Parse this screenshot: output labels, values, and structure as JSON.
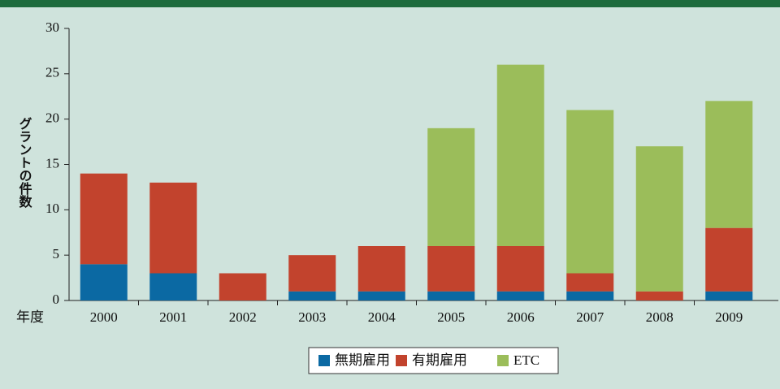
{
  "chart_data": {
    "type": "stacked_bar",
    "xlabel": "年度",
    "ylabel": "グラントの件数",
    "categories": [
      "2000",
      "2001",
      "2002",
      "2003",
      "2004",
      "2005",
      "2006",
      "2007",
      "2008",
      "2009"
    ],
    "series": [
      {
        "name": "無期雇用",
        "color": "#0b69a3",
        "values": [
          4,
          3,
          0,
          1,
          1,
          1,
          1,
          1,
          0,
          1
        ]
      },
      {
        "name": "有期雇用",
        "color": "#c2432d",
        "values": [
          10,
          10,
          3,
          4,
          5,
          5,
          5,
          2,
          1,
          7
        ]
      },
      {
        "name": "ETC",
        "color": "#9bbd5a",
        "values": [
          0,
          0,
          0,
          0,
          0,
          13,
          20,
          18,
          16,
          14
        ]
      }
    ],
    "ylim": [
      0,
      30
    ],
    "yticks": [
      0,
      5,
      10,
      15,
      20,
      25,
      30
    ],
    "legend": "bottom"
  }
}
